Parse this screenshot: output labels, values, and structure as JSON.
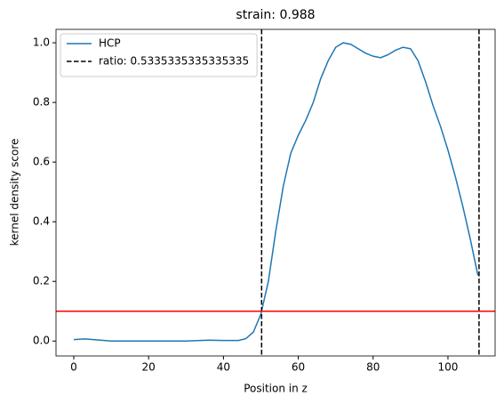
{
  "chart_data": {
    "type": "line",
    "title": "strain: 0.988",
    "x_label": "Position in z",
    "y_label": "kernel density score",
    "x": [
      0,
      3,
      6,
      10,
      20,
      30,
      36,
      40,
      44,
      46,
      48,
      50,
      52,
      54,
      56,
      58,
      60,
      62,
      64,
      66,
      68,
      70,
      72,
      74,
      76,
      78,
      80,
      82,
      84,
      86,
      88,
      90,
      92,
      94,
      96,
      98,
      100,
      102,
      104,
      106,
      108
    ],
    "series": [
      {
        "name": "HCP",
        "color": "#1f77b4",
        "values": [
          0.005,
          0.007,
          0.004,
          0.0,
          0.0,
          0.0,
          0.003,
          0.002,
          0.002,
          0.008,
          0.03,
          0.09,
          0.2,
          0.37,
          0.52,
          0.63,
          0.69,
          0.74,
          0.8,
          0.88,
          0.94,
          0.985,
          1.0,
          0.995,
          0.98,
          0.965,
          0.955,
          0.95,
          0.96,
          0.975,
          0.985,
          0.98,
          0.94,
          0.87,
          0.79,
          0.72,
          0.64,
          0.55,
          0.45,
          0.34,
          0.22
        ]
      }
    ],
    "vlines": {
      "name": "ratio: 0.5335335335335335",
      "color": "#000000",
      "values": [
        50.2,
        108.3
      ]
    },
    "hline": {
      "color": "#ff0000",
      "value": 0.1
    },
    "xlim": [
      -4.75,
      112.6
    ],
    "ylim": [
      -0.05,
      1.045
    ],
    "xticks": [
      0,
      20,
      40,
      60,
      80,
      100
    ],
    "yticks": [
      {
        "value": 0,
        "label": "0.0"
      },
      {
        "value": 0.2,
        "label": "0.2"
      },
      {
        "value": 0.4,
        "label": "0.4"
      },
      {
        "value": 0.6,
        "label": "0.6"
      },
      {
        "value": 0.8,
        "label": "0.8"
      },
      {
        "value": 1.0,
        "label": "1.0"
      }
    ],
    "legend": "upper left"
  }
}
